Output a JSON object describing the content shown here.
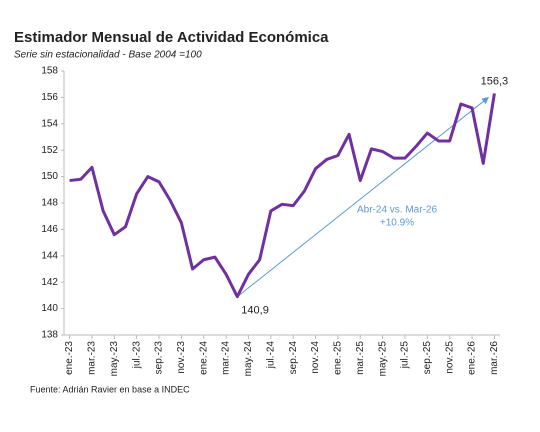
{
  "chart_data": {
    "type": "line",
    "title": "Estimador Mensual de Actividad Económica",
    "subtitle": "Serie sin estacionalidad - Base 2004 =100",
    "source": "Fuente: Adrián Ravier en base a INDEC",
    "annotation": {
      "text": "Abr-24 vs. Mar-26",
      "change": "+10.9%",
      "color": "#5b9bd5"
    },
    "categories": [
      "ene.-23",
      null,
      "mar.-23",
      null,
      "may.-23",
      null,
      "jul.-23",
      null,
      "sep.-23",
      null,
      "nov.-23",
      null,
      "ene.-24",
      null,
      "mar.-24",
      null,
      "may.-24",
      null,
      "jul.-24",
      null,
      "sep.-24",
      null,
      "nov.-24",
      null,
      "ene.-25",
      null,
      "mar.-25",
      null,
      "may.-25",
      null,
      "jul.-25",
      null,
      "sep.-25",
      null,
      "nov.-25",
      null,
      "ene.-26",
      null,
      "mar.-26"
    ],
    "series": [
      {
        "color": "#7030a0",
        "values": [
          149.7,
          149.8,
          150.7,
          147.4,
          145.6,
          146.2,
          148.7,
          150.0,
          149.6,
          148.2,
          146.5,
          143.0,
          143.7,
          143.9,
          142.6,
          140.9,
          142.6,
          143.7,
          147.4,
          147.9,
          147.8,
          148.9,
          150.6,
          151.3,
          151.6,
          153.2,
          149.7,
          152.1,
          151.9,
          151.4,
          151.4,
          152.3,
          153.3,
          152.7,
          152.7,
          155.5,
          155.2,
          151.0,
          156.3
        ],
        "value_labels": [
          null,
          null,
          null,
          null,
          null,
          null,
          null,
          null,
          null,
          null,
          null,
          null,
          null,
          null,
          null,
          "140,9",
          null,
          null,
          null,
          null,
          null,
          null,
          null,
          null,
          null,
          null,
          null,
          null,
          null,
          null,
          null,
          null,
          null,
          null,
          null,
          null,
          null,
          null,
          "156,3"
        ]
      }
    ],
    "ylim": [
      138,
      158
    ],
    "yticks": [
      138,
      140,
      142,
      144,
      146,
      148,
      150,
      152,
      154,
      156,
      158
    ],
    "grid": false
  }
}
